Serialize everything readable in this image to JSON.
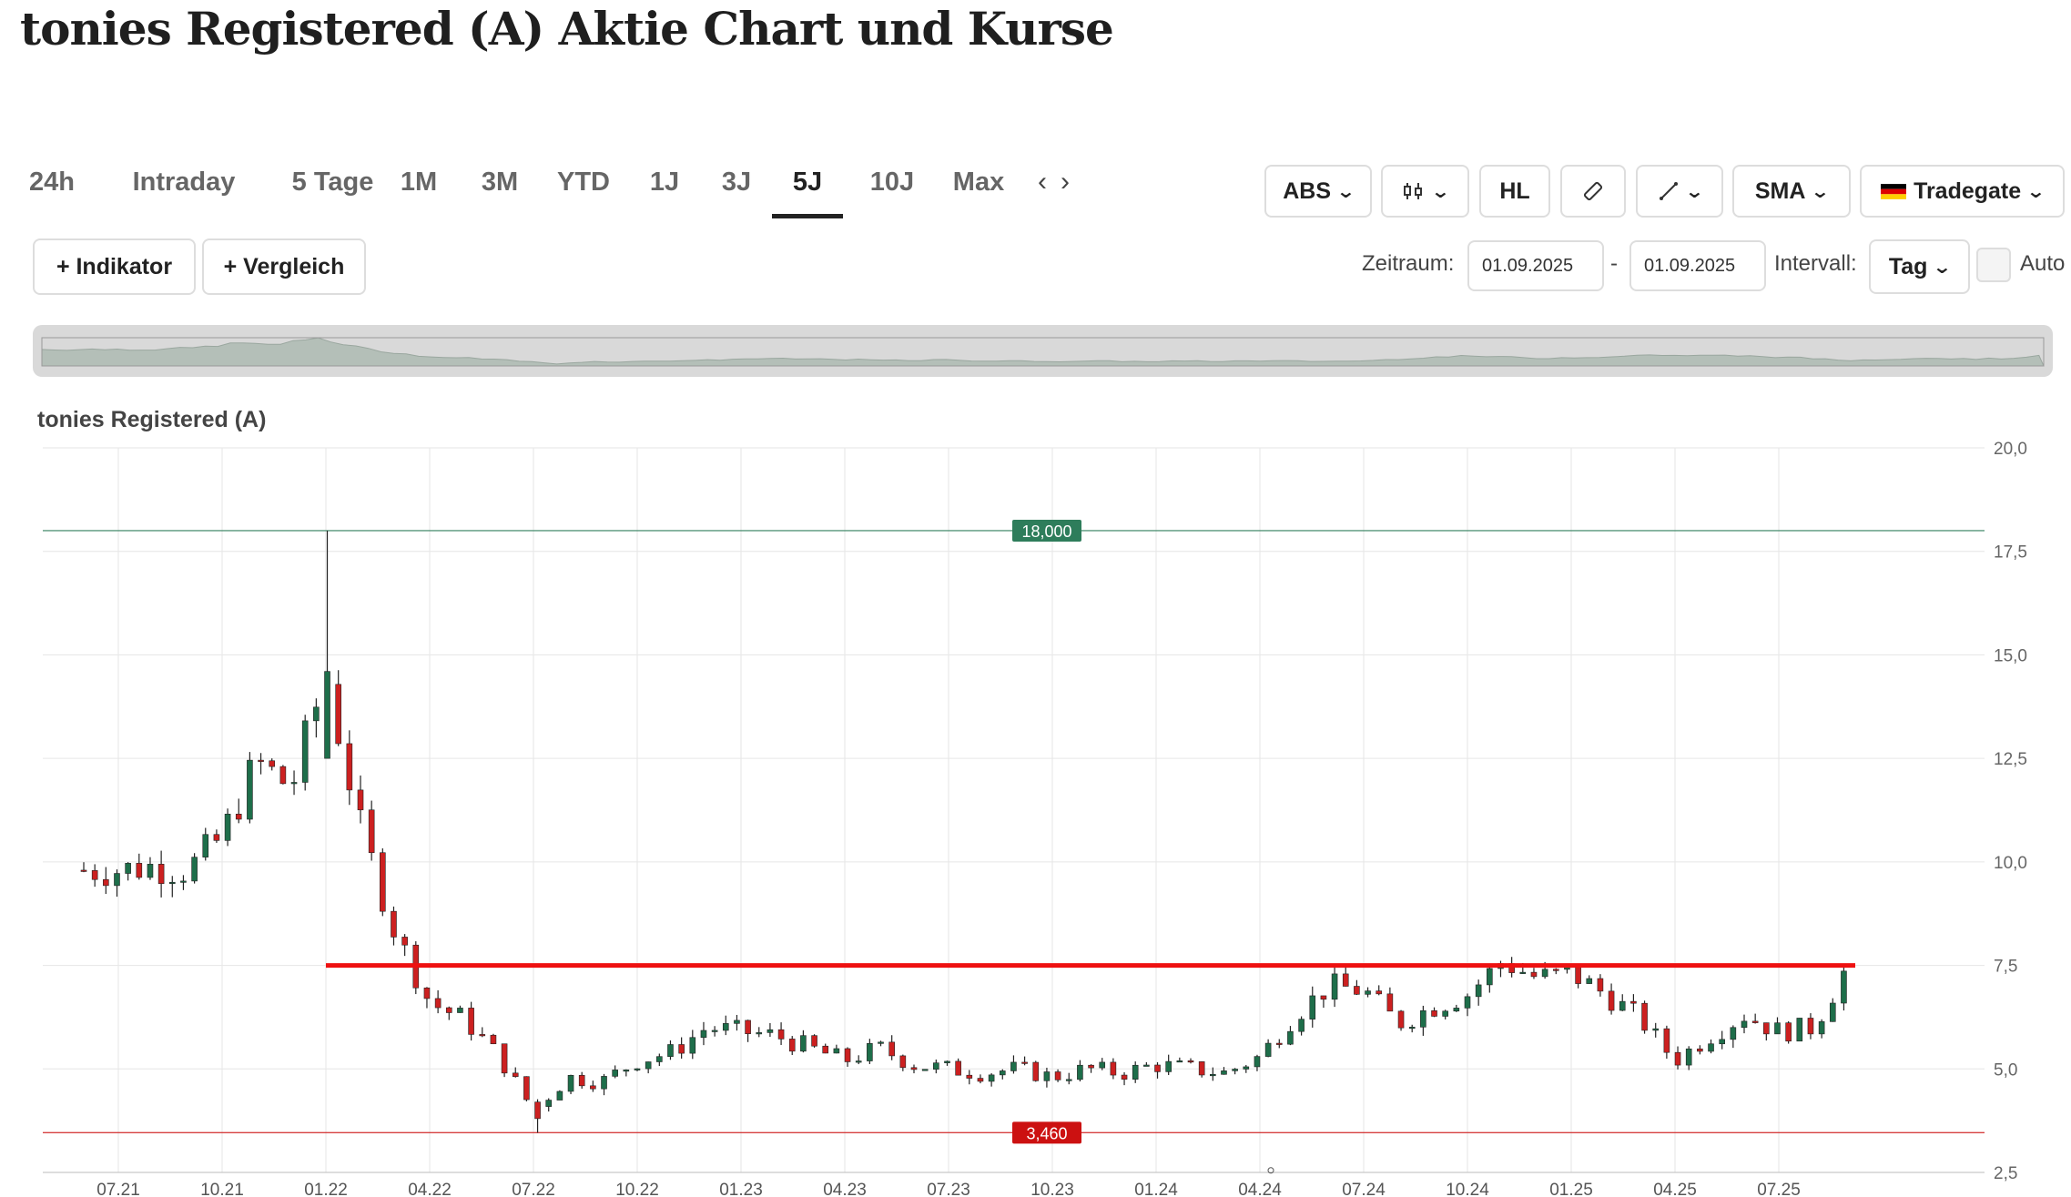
{
  "page": {
    "title": "tonies Registered (A) Aktie Chart und Kurse"
  },
  "tabs": [
    {
      "label": "24h",
      "active": false
    },
    {
      "label": "Intraday",
      "active": false
    },
    {
      "label": "5 Tage",
      "active": false
    },
    {
      "label": "1M",
      "active": false
    },
    {
      "label": "3M",
      "active": false
    },
    {
      "label": "YTD",
      "active": false
    },
    {
      "label": "1J",
      "active": false
    },
    {
      "label": "3J",
      "active": false
    },
    {
      "label": "5J",
      "active": true
    },
    {
      "label": "10J",
      "active": false
    },
    {
      "label": "Max",
      "active": false
    }
  ],
  "toolbar": {
    "abs": "ABS",
    "chart_type_icon": "candlestick-icon",
    "hl": "HL",
    "ruler_icon": "ruler-icon",
    "draw_icon": "pencil-icon",
    "sma": "SMA",
    "exchange": "Tradegate",
    "exchange_flag": "germany-flag-icon"
  },
  "controls": {
    "indicator": "+ Indikator",
    "comparison": "+ Vergleich",
    "period_label": "Zeitraum:",
    "date_from": "01.09.2025",
    "separator": "-",
    "date_to": "01.09.2025",
    "interval_label": "Intervall:",
    "interval": "Tag",
    "auto_label": "Auto"
  },
  "chart_data": {
    "type": "candlestick",
    "title": "tonies Registered (A)",
    "x_ticks": [
      "07.21",
      "10.21",
      "01.22",
      "04.22",
      "07.22",
      "10.22",
      "01.23",
      "04.23",
      "07.23",
      "10.23",
      "01.24",
      "04.24",
      "07.24",
      "10.24",
      "01.25",
      "04.25",
      "07.25"
    ],
    "y_ticks": [
      "20,0",
      "17,5",
      "15,0",
      "12,5",
      "10,0",
      "7,5",
      "5,0",
      "2,5"
    ],
    "ylim": [
      2.5,
      20.0
    ],
    "high_line": {
      "value": 18.0,
      "label": "18,000",
      "color": "#2e7d5b"
    },
    "low_line": {
      "value": 3.46,
      "label": "3,460",
      "color": "#cc1111"
    },
    "resistance_line": {
      "value": 7.5,
      "start": "01.22",
      "end": "09.25",
      "color": "#ee1111"
    },
    "up_color": "#1e6e4a",
    "down_color": "#cc2020",
    "price_path": [
      [
        "06.21",
        9.8
      ],
      [
        "07.21",
        9.8
      ],
      [
        "08.21",
        9.9
      ],
      [
        "09.21",
        9.8
      ],
      [
        "10.21",
        10.6
      ],
      [
        "11.21",
        12.4
      ],
      [
        "12.21",
        11.8
      ],
      [
        "01.22",
        14.5
      ],
      [
        "02.22",
        10.8
      ],
      [
        "03.22",
        8.3
      ],
      [
        "04.22",
        6.6
      ],
      [
        "05.22",
        6.2
      ],
      [
        "06.22",
        5.3
      ],
      [
        "07.22",
        4.0
      ],
      [
        "08.22",
        4.8
      ],
      [
        "09.22",
        4.7
      ],
      [
        "10.22",
        5.2
      ],
      [
        "11.22",
        5.4
      ],
      [
        "12.22",
        6.0
      ],
      [
        "01.23",
        5.9
      ],
      [
        "02.23",
        5.8
      ],
      [
        "03.23",
        5.5
      ],
      [
        "04.23",
        5.2
      ],
      [
        "05.23",
        5.5
      ],
      [
        "06.23",
        5.1
      ],
      [
        "07.23",
        5.0
      ],
      [
        "08.23",
        4.9
      ],
      [
        "09.23",
        5.0
      ],
      [
        "10.23",
        4.8
      ],
      [
        "11.23",
        5.0
      ],
      [
        "12.23",
        4.9
      ],
      [
        "01.24",
        5.1
      ],
      [
        "02.24",
        5.0
      ],
      [
        "03.24",
        4.9
      ],
      [
        "04.24",
        5.3
      ],
      [
        "05.24",
        6.3
      ],
      [
        "06.24",
        7.0
      ],
      [
        "07.24",
        6.9
      ],
      [
        "08.24",
        6.1
      ],
      [
        "09.24",
        6.5
      ],
      [
        "10.24",
        6.8
      ],
      [
        "11.24",
        7.6
      ],
      [
        "12.24",
        7.2
      ],
      [
        "01.25",
        7.3
      ],
      [
        "02.25",
        6.8
      ],
      [
        "03.25",
        6.2
      ],
      [
        "04.25",
        5.2
      ],
      [
        "05.25",
        5.8
      ],
      [
        "06.25",
        6.3
      ],
      [
        "07.25",
        5.9
      ],
      [
        "08.25",
        6.0
      ],
      [
        "09.25",
        7.5
      ]
    ]
  }
}
